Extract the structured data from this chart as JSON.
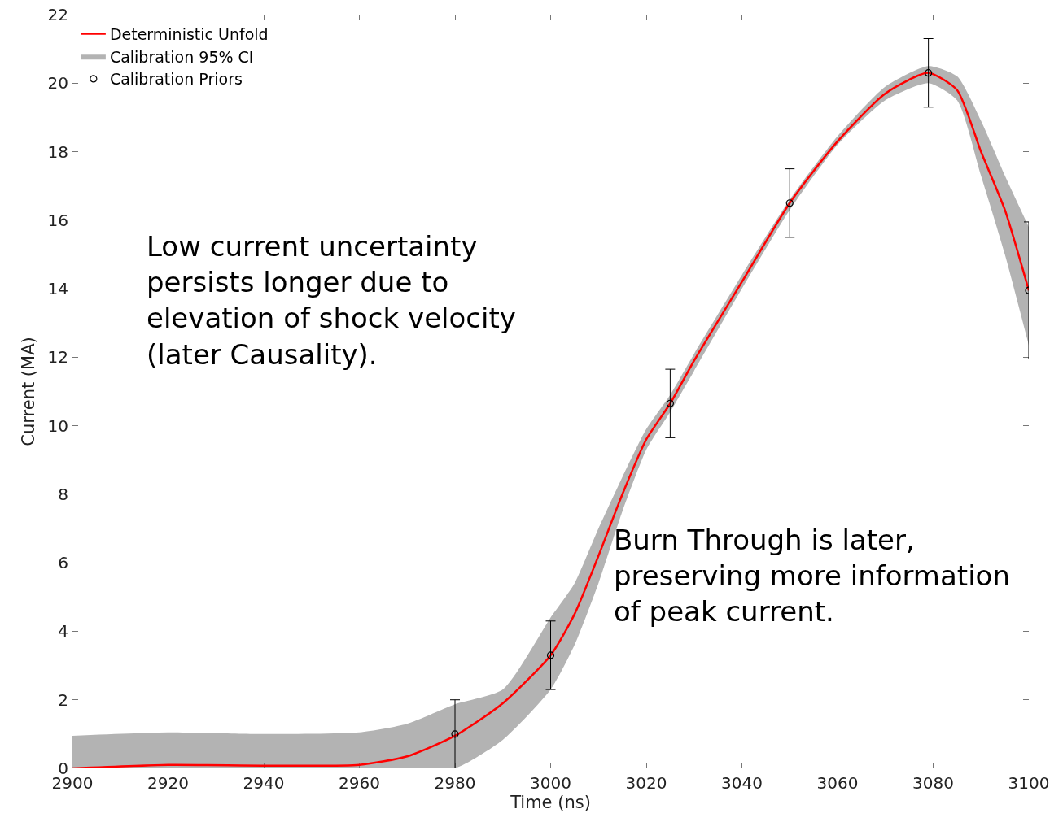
{
  "chart_data": {
    "type": "line",
    "xlabel": "Time (ns)",
    "ylabel": "Current (MA)",
    "xlim": [
      2900,
      3100
    ],
    "xticks": [
      2900,
      2920,
      2940,
      2960,
      2980,
      3000,
      3020,
      3040,
      3060,
      3080,
      3100
    ],
    "ylim": [
      0,
      22
    ],
    "yticks": [
      0,
      2,
      4,
      6,
      8,
      10,
      12,
      14,
      16,
      18,
      20,
      22
    ],
    "grid": false,
    "legend": "top left",
    "series": [
      {
        "name": "Deterministic Unfold",
        "type": "line",
        "color": "#ff0000",
        "marker": "none",
        "line_style": "solid",
        "x": [
          2900,
          2920,
          2940,
          2960,
          2970,
          2980,
          2990,
          3000,
          3005,
          3010,
          3015,
          3020,
          3025,
          3030,
          3040,
          3050,
          3060,
          3070,
          3079,
          3085,
          3090,
          3095,
          3100
        ],
        "values": [
          0,
          0.1,
          0.08,
          0.1,
          0.35,
          0.95,
          1.9,
          3.3,
          4.5,
          6.2,
          8.0,
          9.6,
          10.65,
          11.9,
          14.2,
          16.5,
          18.3,
          19.7,
          20.3,
          19.8,
          18.0,
          16.3,
          13.95
        ]
      },
      {
        "name": "Calibration 95% CI",
        "type": "line",
        "color": "#b3b3b3",
        "x": [
          2900,
          2920,
          2940,
          2960,
          2970,
          2980,
          2990,
          3000,
          3005,
          3010,
          3015,
          3020,
          3025,
          3030,
          3040,
          3050,
          3060,
          3070,
          3079,
          3085,
          3090,
          3095,
          3100
        ],
        "values": [
          null,
          null,
          null,
          null,
          null,
          null,
          null,
          null,
          null,
          null,
          null,
          null,
          null,
          null,
          null,
          null,
          null,
          null,
          null,
          null,
          null,
          null,
          null
        ],
        "upper": [
          0.95,
          1.05,
          1.0,
          1.05,
          1.3,
          1.87,
          2.3,
          4.4,
          5.4,
          7.0,
          8.5,
          9.9,
          10.9,
          12.1,
          14.4,
          16.6,
          18.45,
          19.9,
          20.5,
          20.2,
          18.9,
          17.3,
          15.8
        ],
        "lower": [
          0,
          0,
          0,
          0,
          0,
          0,
          0.83,
          2.3,
          3.6,
          5.4,
          7.5,
          9.3,
          10.4,
          11.6,
          14.0,
          16.3,
          18.2,
          19.5,
          20.0,
          19.5,
          17.3,
          15.0,
          12.35
        ]
      },
      {
        "name": "Calibration Priors",
        "type": "scatter",
        "color": "#000000",
        "marker": "circle",
        "x": [
          2980,
          3000,
          3025,
          3050,
          3079,
          3100
        ],
        "values": [
          1,
          3.3,
          10.65,
          16.5,
          20.3,
          13.95
        ],
        "errors": [
          1,
          1,
          1,
          1,
          1,
          2
        ]
      }
    ],
    "annotations": [
      "Low current uncertainty persists longer due to elevation of shock velocity (later Causality).",
      "Burn Through is later, preserving more information of peak current."
    ]
  }
}
